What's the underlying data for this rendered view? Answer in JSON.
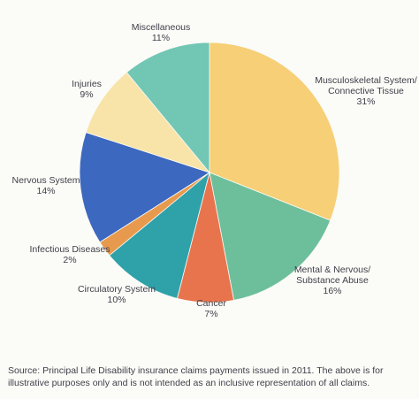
{
  "chart_data": {
    "type": "pie",
    "slices": [
      {
        "label_lines": [
          "Musculoskeletal System/",
          "Connective Tissue"
        ],
        "pct_text": "31%",
        "value": 31,
        "color": "#f6cf76"
      },
      {
        "label_lines": [
          "Mental & Nervous/",
          "Substance Abuse"
        ],
        "pct_text": "16%",
        "value": 16,
        "color": "#6dbf9b"
      },
      {
        "label_lines": [
          "Cancer"
        ],
        "pct_text": "7%",
        "value": 7,
        "color": "#e8744e"
      },
      {
        "label_lines": [
          "Circulatory System"
        ],
        "pct_text": "10%",
        "value": 10,
        "color": "#2fa1a9"
      },
      {
        "label_lines": [
          "Infectious Diseases"
        ],
        "pct_text": "2%",
        "value": 2,
        "color": "#e79a4e"
      },
      {
        "label_lines": [
          "Nervous System"
        ],
        "pct_text": "14%",
        "value": 14,
        "color": "#3d68bf"
      },
      {
        "label_lines": [
          "Injuries"
        ],
        "pct_text": "9%",
        "value": 9,
        "color": "#f8e4a8"
      },
      {
        "label_lines": [
          "Miscellaneous"
        ],
        "pct_text": "11%",
        "value": 11,
        "color": "#72c6b4"
      }
    ],
    "start_angle_deg": 0,
    "direction": "clockwise"
  },
  "source_note": "Source: Principal Life Disability insurance claims payments issued in 2011. The above is for illustrative purposes only and is not intended as an inclusive representation of all claims."
}
